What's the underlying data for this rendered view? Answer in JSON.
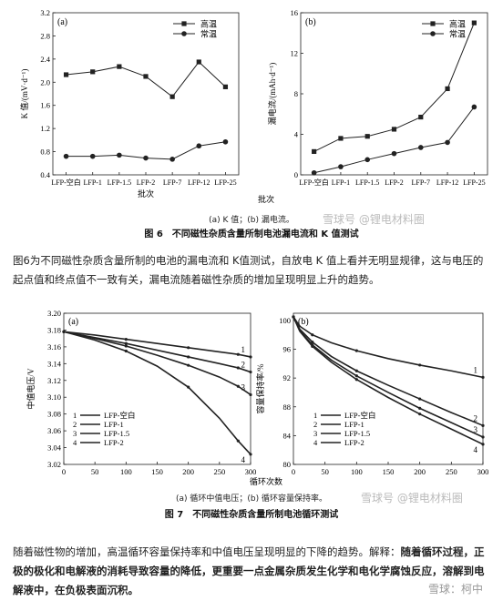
{
  "fig6": {
    "caption": "图 6　不同磁性杂质含量所制电池漏电流和 K 值测试",
    "subcaption": "(a) K 值；(b) 漏电流。",
    "watermark": "雪球号 @锂电材料圈"
  },
  "fig7": {
    "caption": "图 7　不同磁性杂质含量所制电池循环测试",
    "subcaption": "(a) 循环中值电压；(b) 循环容量保持率。",
    "watermark": "雪球号 @锂电材料圈"
  },
  "text": {
    "p1": "图6为不同磁性杂质含量所制的电池的漏电流和 K值测试，自放电 K 值上看并无明显规律，这与电压的起点值和终点值不一致有关，漏电流随着磁性杂质的增加呈现明显上升的趋势。",
    "p2_normal": "随着磁性物的增加，高温循环容量保持率和中值电压呈现明显的下降的趋势。解释：",
    "p2_bold": "随着循环过程，正极的极化和电解液的消耗导致容量的降低，更重要一点金属杂质发生化学和电化学腐蚀反应，溶解到电解液中，在负极表面沉积。",
    "footer_brand": "雪球：柯中"
  },
  "chart_data": [
    {
      "id": "6a",
      "type": "line",
      "panel": "(a)",
      "ylabel": "K 值/(mV·d⁻¹)",
      "xlabel": "批次",
      "categories": [
        "LFP-空白",
        "LFP-1",
        "LFP-1.5",
        "LFP-2",
        "LFP-7",
        "LFP-12",
        "LFP-25"
      ],
      "yticks": [
        "0.4",
        "0.8",
        "1.2",
        "1.6",
        "2.0",
        "2.4",
        "2.8",
        "3.2"
      ],
      "ylim": [
        0.4,
        3.2
      ],
      "series": [
        {
          "name": "高温",
          "marker": "square",
          "values": [
            2.13,
            2.18,
            2.27,
            2.1,
            1.75,
            2.35,
            1.92
          ]
        },
        {
          "name": "常温",
          "marker": "circle",
          "values": [
            0.72,
            0.72,
            0.74,
            0.69,
            0.67,
            0.9,
            0.97
          ]
        }
      ],
      "legend": "top-right"
    },
    {
      "id": "6b",
      "type": "line",
      "panel": "(b)",
      "ylabel": "漏电流/(mAh·d⁻¹)",
      "categories": [
        "LFP-空白",
        "LFP-1",
        "LFP-1.5",
        "LFP-2",
        "LFP-7",
        "LFP-12",
        "LFP-25"
      ],
      "yticks": [
        "0",
        "4",
        "8",
        "12",
        "16"
      ],
      "ylim": [
        0,
        16
      ],
      "series": [
        {
          "name": "高温",
          "marker": "square",
          "values": [
            2.3,
            3.6,
            3.8,
            4.5,
            5.7,
            8.5,
            15.0
          ]
        },
        {
          "name": "常温",
          "marker": "circle",
          "values": [
            0.2,
            0.8,
            1.5,
            2.1,
            2.7,
            3.2,
            6.7
          ]
        }
      ],
      "legend": "top-right"
    },
    {
      "id": "7a",
      "type": "line",
      "panel": "(a)",
      "ylabel": "中值电压/V",
      "yticks": [
        "3.02",
        "3.04",
        "3.06",
        "3.08",
        "3.10",
        "3.12",
        "3.14",
        "3.16",
        "3.18",
        "3.20"
      ],
      "xticks": [
        "0",
        "50",
        "100",
        "150",
        "200",
        "250",
        "300"
      ],
      "xlim": [
        0,
        300
      ],
      "ylim": [
        3.02,
        3.2
      ],
      "series": [
        {
          "name": "LFP-空白",
          "label": "1",
          "x": [
            0,
            50,
            100,
            150,
            200,
            250,
            280,
            300
          ],
          "y": [
            3.178,
            3.174,
            3.169,
            3.164,
            3.159,
            3.154,
            3.151,
            3.148
          ]
        },
        {
          "name": "LFP-1",
          "label": "2",
          "x": [
            0,
            50,
            100,
            150,
            200,
            250,
            280,
            300
          ],
          "y": [
            3.178,
            3.171,
            3.164,
            3.156,
            3.148,
            3.14,
            3.135,
            3.13
          ]
        },
        {
          "name": "LFP-1.5",
          "label": "3",
          "x": [
            0,
            50,
            100,
            150,
            200,
            250,
            280,
            300
          ],
          "y": [
            3.178,
            3.17,
            3.161,
            3.15,
            3.138,
            3.124,
            3.113,
            3.103
          ]
        },
        {
          "name": "LFP-2",
          "label": "4",
          "x": [
            0,
            50,
            100,
            150,
            200,
            250,
            280,
            300
          ],
          "y": [
            3.178,
            3.168,
            3.155,
            3.137,
            3.112,
            3.075,
            3.048,
            3.032
          ]
        }
      ]
    },
    {
      "id": "7b",
      "type": "line",
      "panel": "(b)",
      "ylabel": "容量保持率/%",
      "xlabel": "循环次数",
      "yticks": [
        "80",
        "84",
        "88",
        "92",
        "96",
        "100"
      ],
      "xticks": [
        "0",
        "50",
        "100",
        "150",
        "200",
        "250",
        "300"
      ],
      "xlim": [
        0,
        300
      ],
      "ylim": [
        80,
        101
      ],
      "series": [
        {
          "name": "LFP-空白",
          "label": "1",
          "x": [
            0,
            10,
            30,
            60,
            100,
            150,
            200,
            250,
            300
          ],
          "y": [
            100.5,
            99.2,
            98.0,
            96.9,
            95.8,
            94.7,
            93.8,
            93.0,
            92.1
          ]
        },
        {
          "name": "LFP-1",
          "label": "2",
          "x": [
            0,
            10,
            30,
            60,
            100,
            150,
            200,
            250,
            300
          ],
          "y": [
            100.5,
            98.8,
            97.0,
            95.0,
            93.0,
            91.0,
            89.1,
            87.2,
            85.4
          ]
        },
        {
          "name": "LFP-1.5",
          "label": "3",
          "x": [
            0,
            10,
            30,
            60,
            100,
            150,
            200,
            250,
            300
          ],
          "y": [
            100.5,
            98.6,
            96.6,
            94.5,
            92.3,
            90.0,
            87.8,
            85.8,
            83.8
          ]
        },
        {
          "name": "LFP-2",
          "label": "4",
          "x": [
            0,
            10,
            30,
            60,
            100,
            150,
            200,
            250,
            300
          ],
          "y": [
            100.5,
            98.5,
            96.4,
            94.2,
            91.8,
            89.3,
            87.0,
            84.9,
            82.8
          ]
        }
      ]
    }
  ]
}
